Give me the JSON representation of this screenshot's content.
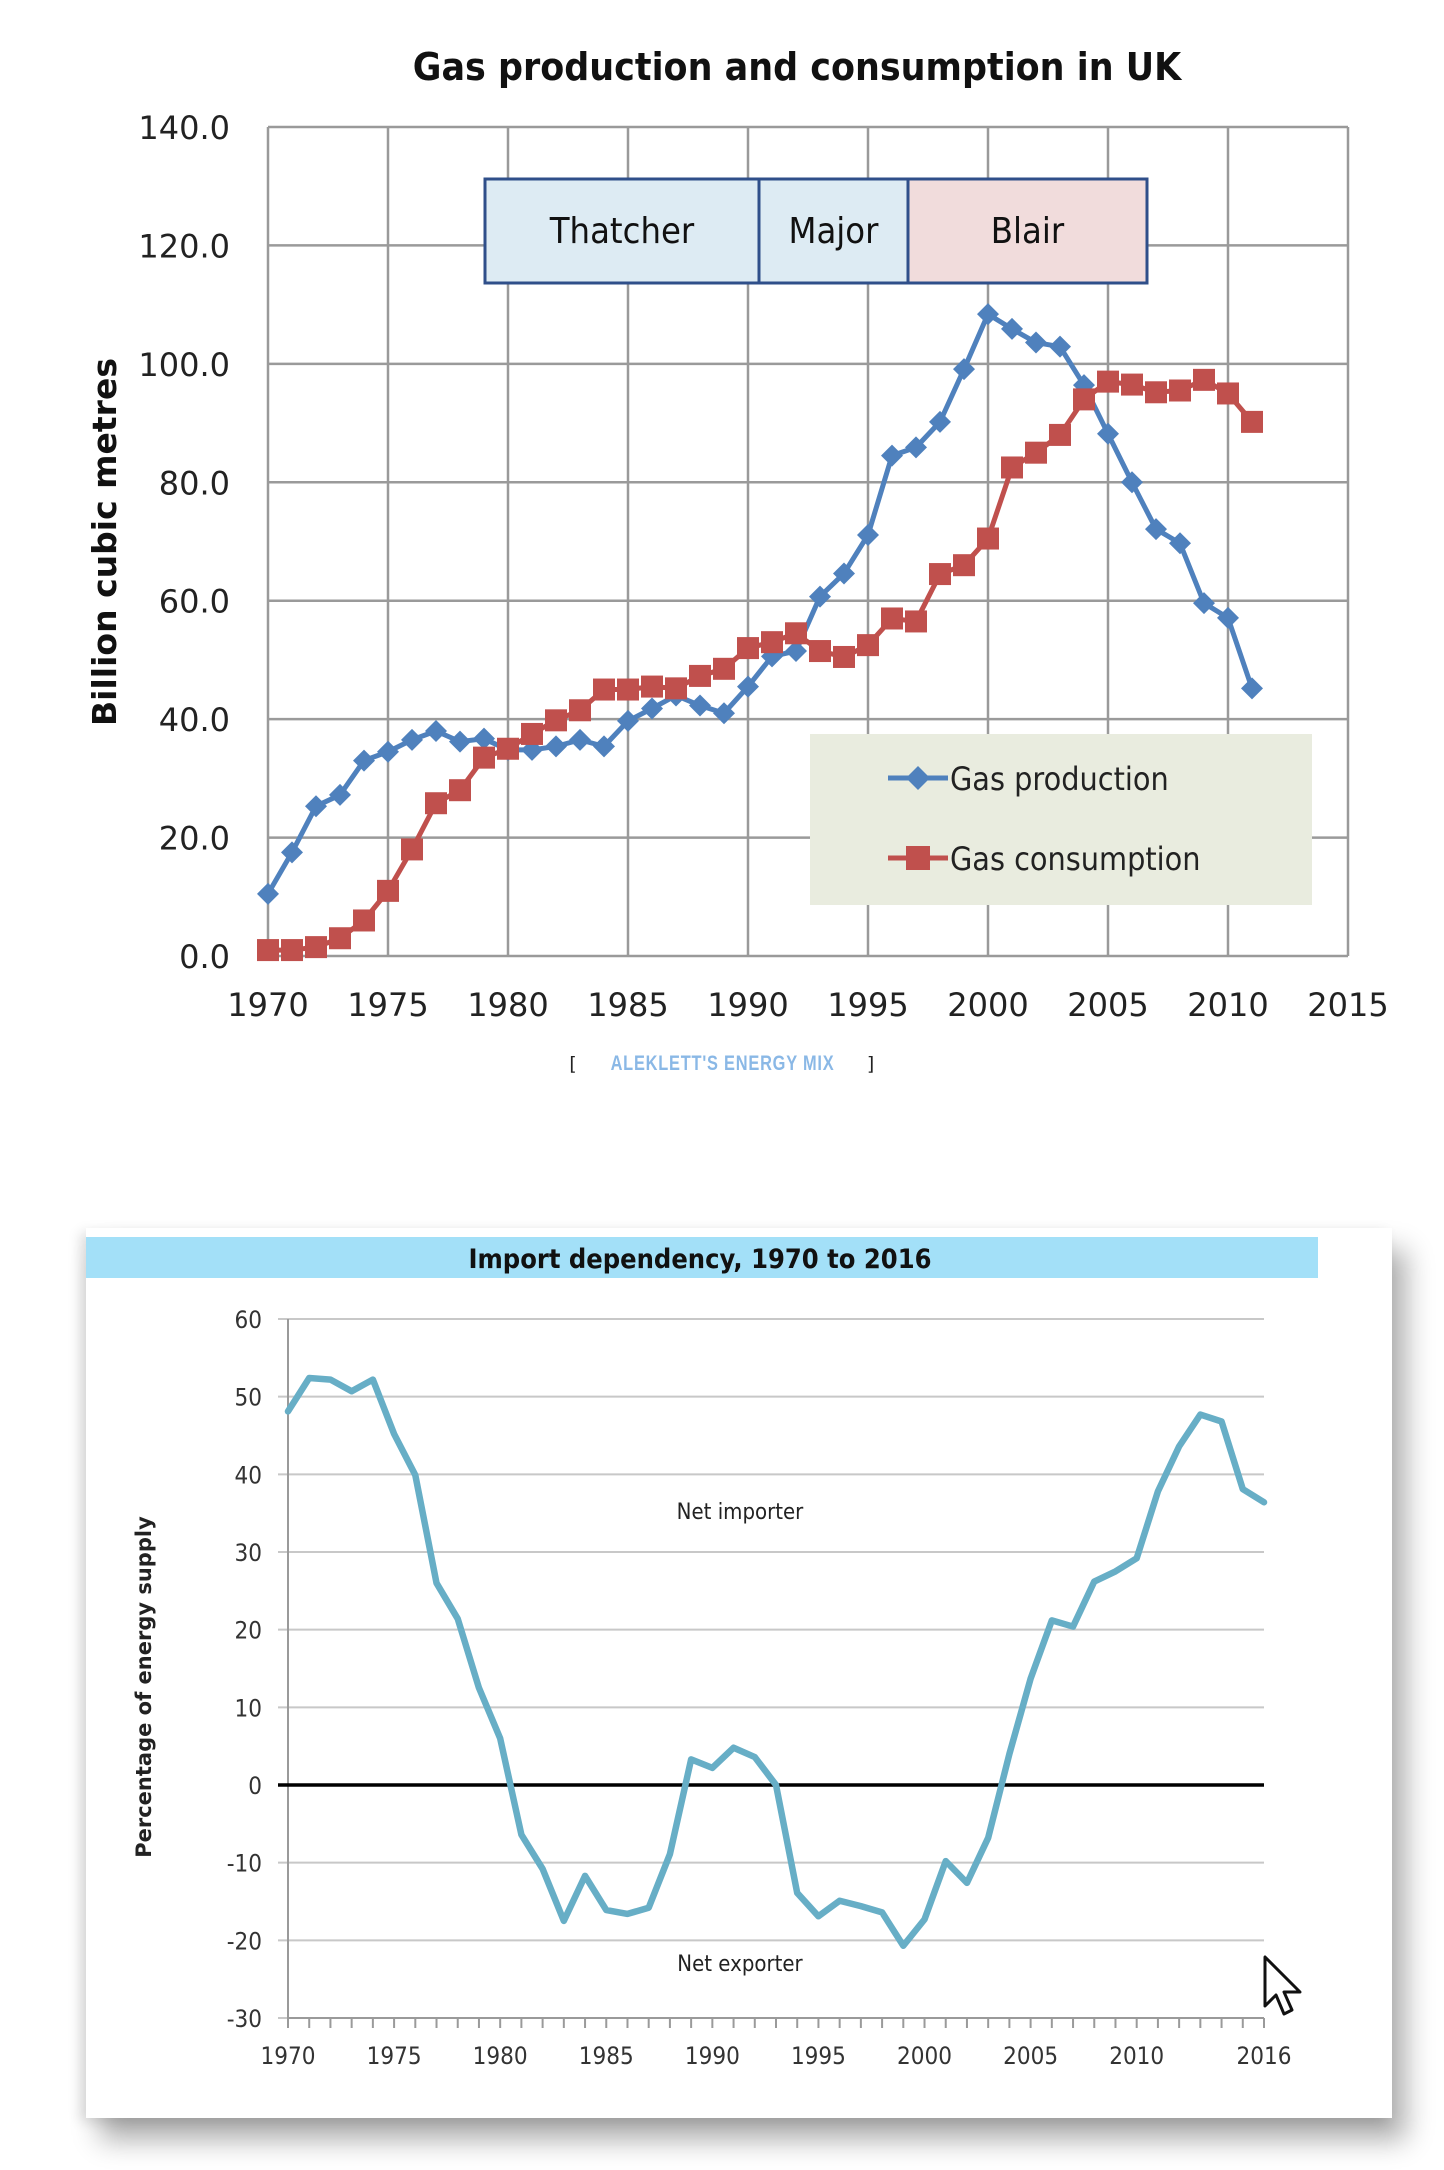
{
  "attribution": {
    "open_bracket": "[",
    "link_text": "ALEKLETT'S ENERGY MIX",
    "close_bracket": "]"
  },
  "chart_data": [
    {
      "type": "line",
      "title": "Gas production and consumption in UK",
      "xlabel": "",
      "ylabel": "Billion cubic metres",
      "xlim": [
        1970,
        2015
      ],
      "ylim": [
        0,
        140
      ],
      "x_ticks": [
        "1970",
        "1975",
        "1980",
        "1985",
        "1990",
        "1995",
        "2000",
        "2005",
        "2010",
        "2015"
      ],
      "y_ticks": [
        "0.0",
        "20.0",
        "40.0",
        "60.0",
        "80.0",
        "100.0",
        "120.0",
        "140.0"
      ],
      "grid": true,
      "legend_position": "bottom-right",
      "x": [
        1970,
        1971,
        1972,
        1973,
        1974,
        1975,
        1976,
        1977,
        1978,
        1979,
        1980,
        1981,
        1982,
        1983,
        1984,
        1985,
        1986,
        1987,
        1988,
        1989,
        1990,
        1991,
        1992,
        1993,
        1994,
        1995,
        1996,
        1997,
        1998,
        1999,
        2000,
        2001,
        2002,
        2003,
        2004,
        2005,
        2006,
        2007,
        2008,
        2009,
        2010,
        2011
      ],
      "series": [
        {
          "name": "Gas production",
          "color": "#4f81bd",
          "marker": "diamond",
          "values": [
            10.5,
            17.5,
            25.3,
            27.2,
            33.0,
            34.5,
            36.5,
            38.0,
            36.2,
            36.7,
            34.8,
            34.8,
            35.4,
            36.5,
            35.4,
            39.7,
            41.8,
            44.0,
            42.3,
            41.0,
            45.5,
            50.6,
            51.5,
            60.7,
            64.6,
            71.1,
            84.5,
            85.9,
            90.2,
            99.1,
            108.4,
            105.9,
            103.6,
            102.9,
            96.4,
            88.2,
            80.0,
            72.1,
            69.7,
            59.6,
            57.1,
            45.2
          ]
        },
        {
          "name": "Gas consumption",
          "color": "#c0504d",
          "marker": "square",
          "values": [
            1.0,
            1.0,
            1.5,
            3.0,
            6.0,
            11.0,
            18.0,
            25.8,
            28.0,
            33.5,
            35.0,
            37.5,
            39.8,
            41.5,
            45.0,
            45.0,
            45.5,
            45.2,
            47.3,
            48.5,
            52.0,
            53.0,
            54.5,
            51.5,
            50.5,
            52.5,
            57.0,
            56.5,
            64.5,
            66.0,
            70.5,
            82.5,
            85.0,
            88.0,
            94.0,
            97.0,
            96.5,
            95.2,
            95.5,
            97.3,
            95.0,
            90.2
          ]
        }
      ],
      "annotations": [
        {
          "label": "Thatcher",
          "from_year": 1979,
          "to_year": 1990,
          "color": "#ddebf3"
        },
        {
          "label": "Major",
          "from_year": 1990,
          "to_year": 1997,
          "color": "#ddebf3"
        },
        {
          "label": "Blair",
          "from_year": 1997,
          "to_year": 2007,
          "color": "#f1dcdc"
        }
      ]
    },
    {
      "type": "line",
      "title": "Import dependency, 1970 to 2016",
      "xlabel": "",
      "ylabel": "Percentage of energy supply",
      "xlim": [
        1970,
        2016
      ],
      "ylim": [
        -30,
        60
      ],
      "x_ticks": [
        "1970",
        "1975",
        "1980",
        "1985",
        "1990",
        "1995",
        "2000",
        "2005",
        "2010",
        "2016"
      ],
      "y_ticks": [
        "-30",
        "-20",
        "-10",
        "0",
        "10",
        "20",
        "30",
        "40",
        "50",
        "60"
      ],
      "grid": true,
      "legend_position": "none",
      "x": [
        1970,
        1971,
        1972,
        1973,
        1974,
        1975,
        1976,
        1977,
        1978,
        1979,
        1980,
        1981,
        1982,
        1983,
        1984,
        1985,
        1986,
        1987,
        1988,
        1989,
        1990,
        1991,
        1992,
        1993,
        1994,
        1995,
        1996,
        1997,
        1998,
        1999,
        2000,
        2001,
        2002,
        2003,
        2004,
        2005,
        2006,
        2007,
        2008,
        2009,
        2010,
        2011,
        2012,
        2013,
        2014,
        2015,
        2016
      ],
      "series": [
        {
          "name": "Import dependency",
          "color": "#67aec6",
          "values": [
            48.1,
            52.4,
            52.2,
            50.7,
            52.2,
            45.2,
            39.9,
            26.0,
            21.4,
            12.5,
            6.0,
            -6.4,
            -10.8,
            -17.5,
            -11.7,
            -16.1,
            -16.6,
            -15.8,
            -8.9,
            3.3,
            2.2,
            4.8,
            3.6,
            0.0,
            -13.9,
            -16.9,
            -14.9,
            -15.6,
            -16.4,
            -20.7,
            -17.3,
            -9.8,
            -12.6,
            -6.8,
            4.0,
            13.7,
            21.2,
            20.4,
            26.2,
            27.5,
            29.2,
            37.8,
            43.6,
            47.7,
            46.8,
            38.1,
            36.4
          ]
        }
      ],
      "annotations": [
        {
          "label": "Net importer",
          "x": 1992,
          "y": 34
        },
        {
          "label": "Net exporter",
          "x": 1992,
          "y": -24
        }
      ]
    }
  ]
}
